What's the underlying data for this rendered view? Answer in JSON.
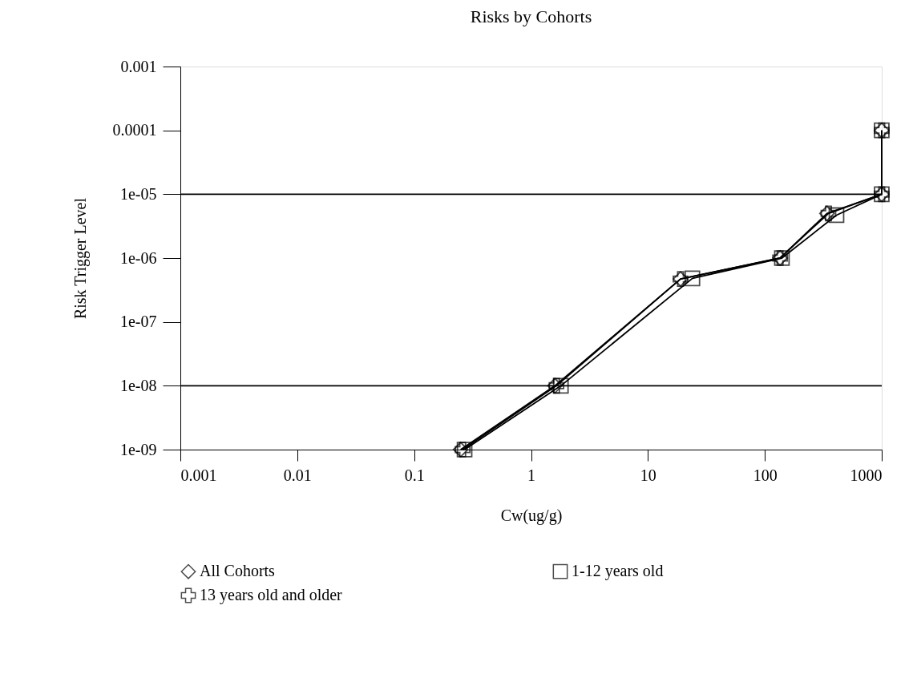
{
  "chart_data": {
    "type": "line",
    "title": "Risks by Cohorts",
    "xlabel": "Cw(ug/g)",
    "ylabel": "Risk Trigger Level",
    "log": "xy",
    "xlim": [
      0.001,
      1000
    ],
    "xticks": [
      0.001,
      0.01,
      0.1,
      1,
      10,
      100,
      1000
    ],
    "ylim": [
      1e-09,
      0.001
    ],
    "yticks": [
      {
        "value": 1e-09,
        "label": "1e-09"
      },
      {
        "value": 1e-08,
        "label": "1e-08"
      },
      {
        "value": 1e-07,
        "label": "1e-07"
      },
      {
        "value": 1e-06,
        "label": "1e-06"
      },
      {
        "value": 1e-05,
        "label": "1e-05"
      },
      {
        "value": 0.0001,
        "label": "0.0001"
      },
      {
        "value": 0.001,
        "label": "0.001"
      }
    ],
    "grid": false,
    "legend": "bottom",
    "line_style": "solid",
    "ref_lines": [
      {
        "axis": "y",
        "value": 1e-05,
        "color": "#000000"
      },
      {
        "axis": "y",
        "value": 1e-08,
        "color": "#000000"
      }
    ],
    "series": [
      {
        "name": "All Cohorts",
        "color": "#000000",
        "marker": "diamond",
        "x": [
          0.25,
          1.6,
          19,
          135,
          340,
          1000,
          1000
        ],
        "values": [
          1e-09,
          1e-08,
          4.7e-07,
          1e-06,
          5e-06,
          1e-05,
          0.0001
        ]
      },
      {
        "name": "1-12 years old",
        "color": "#000000",
        "marker": "square",
        "x": [
          0.27,
          1.8,
          24,
          140,
          410,
          1000,
          1000
        ],
        "values": [
          1e-09,
          1e-08,
          4.8e-07,
          1e-06,
          4.7e-06,
          1e-05,
          0.0001
        ]
      },
      {
        "name": "13 years old and older",
        "color": "#000000",
        "marker": "cross",
        "x": [
          0.26,
          1.65,
          19,
          135,
          350,
          1000,
          1000
        ],
        "values": [
          1e-09,
          1e-08,
          4.7e-07,
          1e-06,
          5e-06,
          1e-05,
          0.0001
        ]
      }
    ]
  }
}
